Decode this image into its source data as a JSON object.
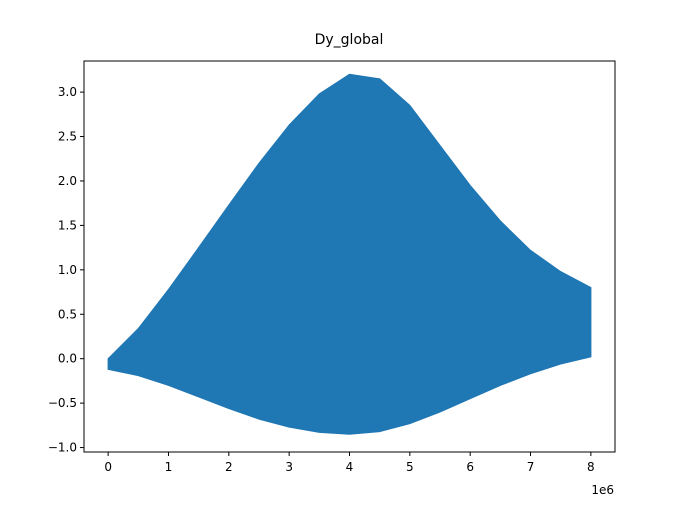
{
  "chart_data": {
    "type": "area",
    "title": "Dy_global",
    "xlabel": "",
    "ylabel": "",
    "x_offset_label": "1e6",
    "xlim": [
      -0.4,
      8.4
    ],
    "ylim": [
      -1.05,
      3.35
    ],
    "x_ticks": [
      0,
      1,
      2,
      3,
      4,
      5,
      6,
      7,
      8
    ],
    "x_tick_labels": [
      "0",
      "1",
      "2",
      "3",
      "4",
      "5",
      "6",
      "7",
      "8"
    ],
    "y_ticks": [
      -1.0,
      -0.5,
      0.0,
      0.5,
      1.0,
      1.5,
      2.0,
      2.5,
      3.0
    ],
    "y_tick_labels": [
      "−1.0",
      "−0.5",
      "0.0",
      "0.5",
      "1.0",
      "1.5",
      "2.0",
      "2.5",
      "3.0"
    ],
    "grid": false,
    "legend": "none",
    "fill_color": "#1f77b4",
    "series": [
      {
        "x": [
          0,
          0.5,
          1,
          1.5,
          2,
          2.5,
          3,
          3.5,
          4,
          4.5,
          5,
          5.5,
          6,
          6.5,
          7,
          7.5,
          8
        ],
        "upper": [
          0.0,
          0.34,
          0.78,
          1.25,
          1.73,
          2.2,
          2.63,
          2.98,
          3.2,
          3.15,
          2.85,
          2.4,
          1.95,
          1.55,
          1.22,
          0.98,
          0.8
        ],
        "lower": [
          -0.12,
          -0.19,
          -0.3,
          -0.43,
          -0.56,
          -0.68,
          -0.77,
          -0.83,
          -0.85,
          -0.82,
          -0.73,
          -0.6,
          -0.45,
          -0.3,
          -0.17,
          -0.06,
          0.02
        ]
      }
    ]
  }
}
